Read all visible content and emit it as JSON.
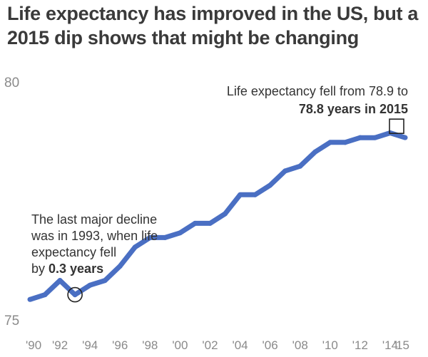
{
  "chart_data": {
    "type": "line",
    "title": "Life expectancy has improved in the US, but a 2015 dip shows that might be changing",
    "xlabel": "",
    "ylabel": "",
    "x": [
      1990,
      1991,
      1992,
      1993,
      1994,
      1995,
      1996,
      1997,
      1998,
      1999,
      2000,
      2001,
      2002,
      2003,
      2004,
      2005,
      2006,
      2007,
      2008,
      2009,
      2010,
      2011,
      2012,
      2013,
      2014,
      2015
    ],
    "series": [
      {
        "values": [
          75.4,
          75.5,
          75.8,
          75.5,
          75.7,
          75.8,
          76.1,
          76.5,
          76.7,
          76.7,
          76.8,
          77.0,
          77.0,
          77.2,
          77.6,
          77.6,
          77.8,
          78.1,
          78.2,
          78.5,
          78.7,
          78.7,
          78.8,
          78.8,
          78.9,
          78.8
        ]
      }
    ],
    "ylim": [
      75,
      80
    ],
    "xlim": [
      1990,
      2015
    ],
    "yticks": [
      75,
      80
    ],
    "ytick_labels": [
      "75",
      "80"
    ],
    "xticks": [
      1990,
      1992,
      1994,
      1996,
      1998,
      2000,
      2002,
      2004,
      2006,
      2008,
      2010,
      2012,
      2014,
      2015
    ],
    "xtick_labels": [
      "'90",
      "'92",
      "'94",
      "'96",
      "'98",
      "'00",
      "'02",
      "'04",
      "'06",
      "'08",
      "'10",
      "'12",
      "'14",
      "'15"
    ],
    "grid": false,
    "line_color": "#4a6fc3",
    "annotations": {
      "decline": {
        "x": 1993,
        "y": 75.5,
        "marker": "circle",
        "line1": "The last major decline",
        "line2": "was in 1993, when life",
        "line3": "expectancy fell",
        "line4_prefix": "by ",
        "line4_bold": "0.3 years"
      },
      "dip": {
        "x": 2015,
        "y": 78.8,
        "marker": "square",
        "line1": "Life expectancy fell from 78.9 to",
        "line2_bold": "78.8 years in 2015"
      }
    }
  }
}
